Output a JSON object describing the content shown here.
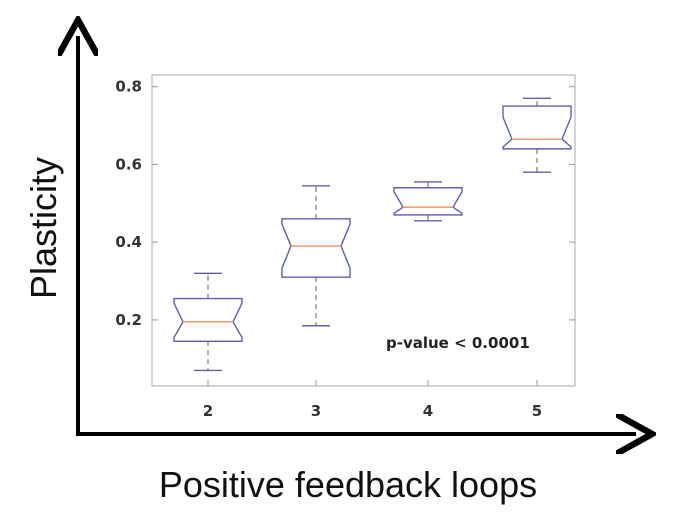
{
  "chart_data": {
    "type": "box",
    "title": "",
    "xlabel": "Positive feedback loops",
    "ylabel": "Plasticity",
    "categories": [
      "2",
      "3",
      "4",
      "5"
    ],
    "y_ticks": [
      "0.2",
      "0.4",
      "0.6",
      "0.8"
    ],
    "ylim": [
      0.03,
      0.83
    ],
    "annotation": "p-value < 0.0001",
    "grid": false,
    "notched": true,
    "colors": {
      "box": "#5f5fb4",
      "median": "#f0a070",
      "whisker": "#777777",
      "axis": "#000000"
    },
    "boxes": [
      {
        "category": "2",
        "min": 0.07,
        "q1": 0.145,
        "median": 0.195,
        "q3": 0.255,
        "max": 0.32
      },
      {
        "category": "3",
        "min": 0.185,
        "q1": 0.31,
        "median": 0.39,
        "q3": 0.46,
        "max": 0.545
      },
      {
        "category": "4",
        "min": 0.455,
        "q1": 0.47,
        "median": 0.49,
        "q3": 0.54,
        "max": 0.555
      },
      {
        "category": "5",
        "min": 0.58,
        "q1": 0.64,
        "median": 0.665,
        "q3": 0.75,
        "max": 0.77
      }
    ]
  }
}
